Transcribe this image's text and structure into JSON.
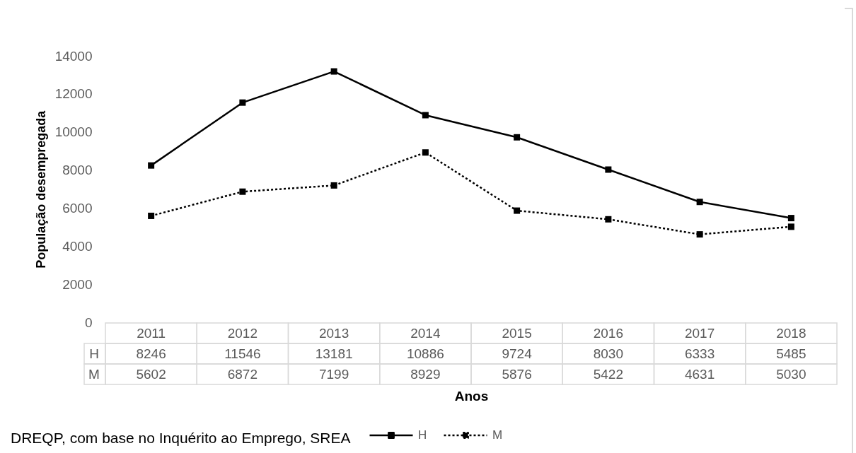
{
  "chart_data": {
    "type": "line",
    "xlabel": "Anos",
    "ylabel": "População desempregada",
    "categories": [
      "2011",
      "2012",
      "2013",
      "2014",
      "2015",
      "2016",
      "2017",
      "2018"
    ],
    "series": [
      {
        "name": "H",
        "color": "#000000",
        "line_style": "solid",
        "values": [
          8246,
          11546,
          13181,
          10886,
          9724,
          8030,
          6333,
          5485
        ]
      },
      {
        "name": "M",
        "color": "#000000",
        "line_style": "dotted",
        "values": [
          5602,
          6872,
          7199,
          8929,
          5876,
          5422,
          4631,
          5030
        ]
      }
    ],
    "ylim": [
      0,
      14000
    ],
    "yticks": [
      0,
      2000,
      4000,
      6000,
      8000,
      10000,
      12000,
      14000
    ],
    "marker": "square",
    "legend": "bottom",
    "data_labels": true,
    "annotations": [
      "DREQP, com base no Inquérito ao Emprego, SREA"
    ]
  }
}
